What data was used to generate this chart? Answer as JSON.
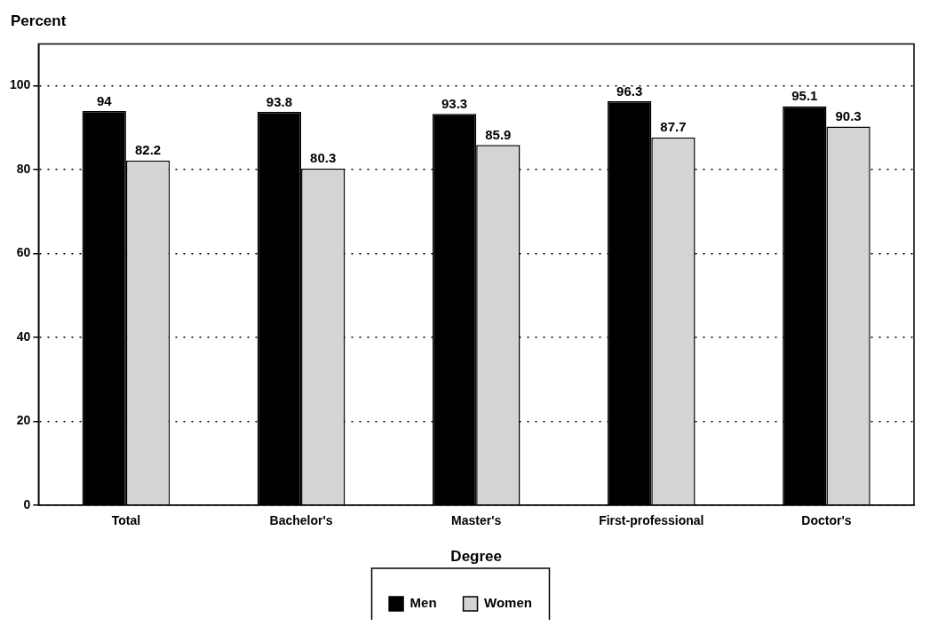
{
  "chart_data": {
    "type": "bar",
    "ylabel": "Percent",
    "xlabel": "Degree",
    "categories": [
      "Total",
      "Bachelor's",
      "Master's",
      "First-professional",
      "Doctor's"
    ],
    "series": [
      {
        "name": "Men",
        "color": "#000000",
        "values": [
          94,
          93.8,
          93.3,
          96.3,
          95.1
        ]
      },
      {
        "name": "Women",
        "color": "#d4d4d4",
        "values": [
          82.2,
          80.3,
          85.9,
          87.7,
          90.3
        ]
      }
    ],
    "ylim": [
      0,
      110
    ],
    "yticks": [
      0,
      20,
      40,
      60,
      80,
      100
    ],
    "grid": "y",
    "legend": "bottom",
    "data_labels": true
  }
}
